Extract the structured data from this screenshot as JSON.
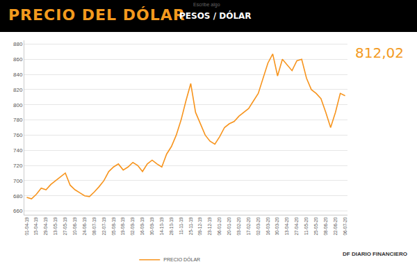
{
  "chart_data": {
    "type": "line",
    "title": "PRECIO DEL DÓLAR",
    "subtitle": "PESOS / DÓLAR",
    "annotations": [
      "Escribe algo",
      "812,02",
      "DF DIARIO FINANCIERO"
    ],
    "categories": [
      "01-04-19",
      null,
      "15-04-19",
      null,
      "29-04-19",
      null,
      "13-05-19",
      null,
      "27-05-19",
      null,
      "10-06-19",
      null,
      "24-06-19",
      null,
      "08-07-19",
      null,
      "22-07-19",
      null,
      "05-08-19",
      null,
      "19-08-19",
      null,
      "02-09-19",
      null,
      "16-09-19",
      null,
      "30-09-19",
      null,
      "14-10-19",
      null,
      "28-10-19",
      null,
      "11-11-19",
      null,
      "25-11-19",
      null,
      "09-12-19",
      null,
      "23-12-19",
      null,
      "06-01-20",
      null,
      "20-01-20",
      null,
      "03-02-20",
      null,
      "17-02-20",
      null,
      "02-03-20",
      null,
      "16-03-20",
      null,
      "30-03-20",
      null,
      "13-04-20",
      null,
      "27-04-20",
      null,
      "11-05-20",
      null,
      "25-05-20",
      null,
      "08-06-20",
      null,
      "22-06-20",
      null,
      "06-07-20"
    ],
    "series": [
      {
        "name": "PRECIO DÓLAR",
        "color": "#f7941d",
        "values": [
          678,
          676,
          682,
          690,
          688,
          695,
          700,
          705,
          710,
          694,
          688,
          684,
          680,
          679,
          685,
          692,
          700,
          712,
          718,
          722,
          714,
          718,
          724,
          720,
          712,
          722,
          727,
          722,
          718,
          735,
          745,
          760,
          780,
          805,
          828,
          790,
          775,
          760,
          752,
          748,
          758,
          770,
          775,
          778,
          785,
          790,
          795,
          805,
          815,
          835,
          855,
          867,
          838,
          860,
          852,
          845,
          858,
          860,
          835,
          820,
          815,
          808,
          790,
          770,
          790,
          815,
          812
        ]
      }
    ],
    "ylim": [
      655,
      885
    ],
    "yticks": [
      660,
      680,
      700,
      720,
      740,
      760,
      780,
      800,
      820,
      840,
      860,
      880
    ],
    "grid": true,
    "legend": "bottom"
  }
}
